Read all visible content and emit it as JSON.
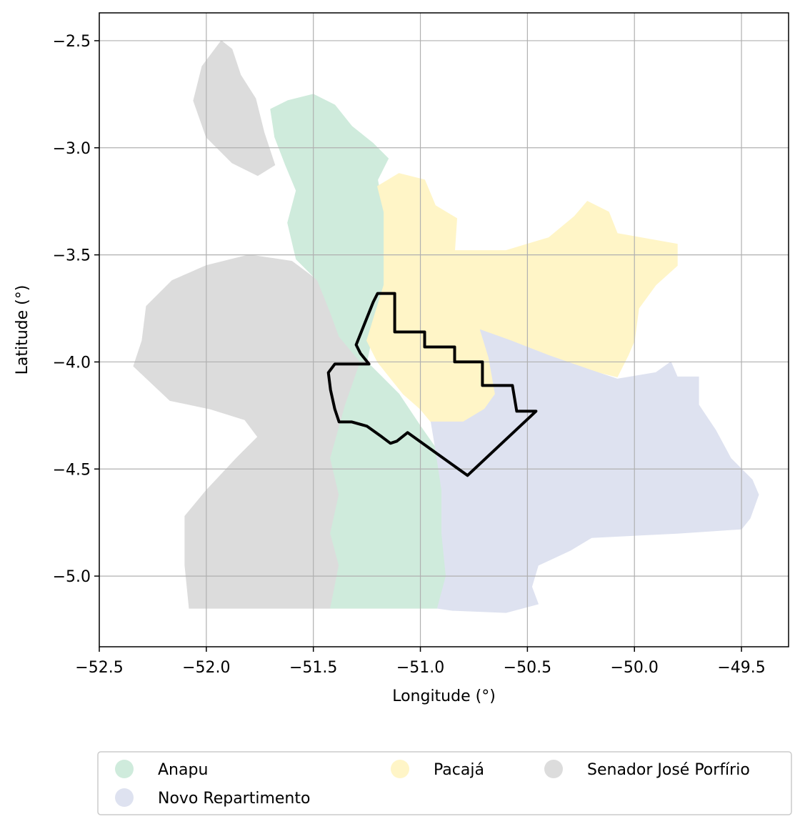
{
  "chart_data": {
    "type": "map",
    "xlabel": "Longitude (°)",
    "ylabel": "Latitude (°)",
    "xlim": [
      -52.5,
      -49.28
    ],
    "ylim": [
      -5.33,
      -2.37
    ],
    "x_ticks": [
      -52.5,
      -52.0,
      -51.5,
      -51.0,
      -50.5,
      -50.0,
      -49.5
    ],
    "x_tick_labels": [
      "−52.5",
      "−52.0",
      "−51.5",
      "−51.0",
      "−50.5",
      "−50.0",
      "−49.5"
    ],
    "y_ticks": [
      -2.5,
      -3.0,
      -3.5,
      -4.0,
      -4.5,
      -5.0
    ],
    "y_tick_labels": [
      "−2.5",
      "−3.0",
      "−3.5",
      "−4.0",
      "−4.5",
      "−5.0"
    ],
    "grid": true,
    "legend": {
      "placement": "bottom",
      "entries": [
        {
          "label": "Anapu",
          "color": "#cfebdc"
        },
        {
          "label": "Novo Repartimento",
          "color": "#dee2f0"
        },
        {
          "label": "Pacajá",
          "color": "#fff5c7"
        },
        {
          "label": "Senador José Porfírio",
          "color": "#dcdcdc"
        }
      ]
    },
    "regions": [
      {
        "name": "Senador José Porfírio",
        "color": "#dcdcdc",
        "outline": [
          [
            -51.93,
            -2.5
          ],
          [
            -51.88,
            -2.54
          ],
          [
            -51.84,
            -2.66
          ],
          [
            -51.77,
            -2.77
          ],
          [
            -51.73,
            -2.93
          ],
          [
            -51.68,
            -3.08
          ],
          [
            -51.76,
            -3.13
          ],
          [
            -51.88,
            -3.07
          ],
          [
            -52.0,
            -2.95
          ],
          [
            -52.06,
            -2.78
          ],
          [
            -52.02,
            -2.62
          ]
        ]
      },
      {
        "name": "Senador José Porfírio",
        "color": "#dcdcdc",
        "outline": [
          [
            -51.8,
            -3.5
          ],
          [
            -51.6,
            -3.53
          ],
          [
            -51.48,
            -3.62
          ],
          [
            -51.42,
            -3.77
          ],
          [
            -51.38,
            -3.88
          ],
          [
            -51.28,
            -4.0
          ],
          [
            -51.35,
            -4.2
          ],
          [
            -51.42,
            -4.45
          ],
          [
            -51.38,
            -4.62
          ],
          [
            -51.42,
            -4.8
          ],
          [
            -51.38,
            -4.95
          ],
          [
            -51.42,
            -5.15
          ],
          [
            -52.08,
            -5.15
          ],
          [
            -52.1,
            -4.95
          ],
          [
            -52.1,
            -4.72
          ],
          [
            -52.0,
            -4.6
          ],
          [
            -51.86,
            -4.45
          ],
          [
            -51.76,
            -4.35
          ],
          [
            -51.82,
            -4.27
          ],
          [
            -51.98,
            -4.22
          ],
          [
            -52.17,
            -4.18
          ],
          [
            -52.34,
            -4.02
          ],
          [
            -52.3,
            -3.9
          ],
          [
            -52.28,
            -3.74
          ],
          [
            -52.16,
            -3.62
          ],
          [
            -52.0,
            -3.55
          ]
        ]
      },
      {
        "name": "Anapu",
        "color": "#cfebdc",
        "outline": [
          [
            -51.5,
            -2.75
          ],
          [
            -51.4,
            -2.8
          ],
          [
            -51.32,
            -2.9
          ],
          [
            -51.22,
            -2.98
          ],
          [
            -51.15,
            -3.05
          ],
          [
            -51.2,
            -3.15
          ],
          [
            -51.17,
            -3.3
          ],
          [
            -51.17,
            -3.64
          ],
          [
            -51.22,
            -3.85
          ],
          [
            -51.25,
            -4.0
          ],
          [
            -51.1,
            -4.15
          ],
          [
            -51.0,
            -4.3
          ],
          [
            -50.93,
            -4.4
          ],
          [
            -50.9,
            -4.6
          ],
          [
            -50.9,
            -4.8
          ],
          [
            -50.88,
            -5.0
          ],
          [
            -50.92,
            -5.15
          ],
          [
            -51.42,
            -5.15
          ],
          [
            -51.38,
            -4.95
          ],
          [
            -51.42,
            -4.8
          ],
          [
            -51.38,
            -4.62
          ],
          [
            -51.42,
            -4.45
          ],
          [
            -51.35,
            -4.2
          ],
          [
            -51.28,
            -4.0
          ],
          [
            -51.38,
            -3.88
          ],
          [
            -51.42,
            -3.77
          ],
          [
            -51.48,
            -3.62
          ],
          [
            -51.58,
            -3.52
          ],
          [
            -51.62,
            -3.35
          ],
          [
            -51.58,
            -3.2
          ],
          [
            -51.63,
            -3.08
          ],
          [
            -51.68,
            -2.95
          ],
          [
            -51.7,
            -2.82
          ],
          [
            -51.62,
            -2.78
          ]
        ]
      },
      {
        "name": "Pacajá",
        "color": "#fff5c7",
        "outline": [
          [
            -51.1,
            -3.12
          ],
          [
            -50.98,
            -3.15
          ],
          [
            -50.93,
            -3.27
          ],
          [
            -50.83,
            -3.33
          ],
          [
            -50.84,
            -3.48
          ],
          [
            -50.6,
            -3.48
          ],
          [
            -50.4,
            -3.42
          ],
          [
            -50.28,
            -3.32
          ],
          [
            -50.22,
            -3.25
          ],
          [
            -50.12,
            -3.3
          ],
          [
            -50.08,
            -3.4
          ],
          [
            -49.8,
            -3.45
          ],
          [
            -49.8,
            -3.55
          ],
          [
            -49.9,
            -3.64
          ],
          [
            -49.98,
            -3.75
          ],
          [
            -50.0,
            -3.9
          ],
          [
            -50.03,
            -3.97
          ],
          [
            -50.08,
            -4.07
          ],
          [
            -50.2,
            -4.04
          ],
          [
            -50.4,
            -3.97
          ],
          [
            -50.58,
            -3.9
          ],
          [
            -50.72,
            -3.85
          ],
          [
            -50.68,
            -3.98
          ],
          [
            -50.65,
            -4.15
          ],
          [
            -50.7,
            -4.22
          ],
          [
            -50.8,
            -4.28
          ],
          [
            -50.95,
            -4.28
          ],
          [
            -51.0,
            -4.22
          ],
          [
            -51.08,
            -4.15
          ],
          [
            -51.2,
            -4.0
          ],
          [
            -51.25,
            -3.9
          ],
          [
            -51.17,
            -3.64
          ],
          [
            -51.17,
            -3.3
          ],
          [
            -51.2,
            -3.18
          ]
        ]
      },
      {
        "name": "Novo Repartimento",
        "color": "#dee2f0",
        "outline": [
          [
            -50.72,
            -3.85
          ],
          [
            -50.58,
            -3.9
          ],
          [
            -50.4,
            -3.97
          ],
          [
            -50.2,
            -4.04
          ],
          [
            -50.08,
            -4.08
          ],
          [
            -49.9,
            -4.05
          ],
          [
            -49.83,
            -4.0
          ],
          [
            -49.8,
            -4.07
          ],
          [
            -49.7,
            -4.07
          ],
          [
            -49.7,
            -4.2
          ],
          [
            -49.62,
            -4.32
          ],
          [
            -49.55,
            -4.45
          ],
          [
            -49.45,
            -4.55
          ],
          [
            -49.42,
            -4.62
          ],
          [
            -49.46,
            -4.73
          ],
          [
            -49.5,
            -4.78
          ],
          [
            -49.8,
            -4.8
          ],
          [
            -50.2,
            -4.82
          ],
          [
            -50.3,
            -4.88
          ],
          [
            -50.45,
            -4.95
          ],
          [
            -50.48,
            -5.05
          ],
          [
            -50.45,
            -5.13
          ],
          [
            -50.6,
            -5.17
          ],
          [
            -50.85,
            -5.16
          ],
          [
            -50.92,
            -5.15
          ],
          [
            -50.88,
            -5.0
          ],
          [
            -50.9,
            -4.8
          ],
          [
            -50.9,
            -4.6
          ],
          [
            -50.93,
            -4.4
          ],
          [
            -50.95,
            -4.28
          ],
          [
            -50.8,
            -4.28
          ],
          [
            -50.7,
            -4.22
          ],
          [
            -50.65,
            -4.15
          ],
          [
            -50.68,
            -3.98
          ]
        ]
      }
    ],
    "highlight_outline": [
      [
        -51.2,
        -3.68
      ],
      [
        -51.12,
        -3.68
      ],
      [
        -51.12,
        -3.86
      ],
      [
        -50.98,
        -3.86
      ],
      [
        -50.98,
        -3.93
      ],
      [
        -50.84,
        -3.93
      ],
      [
        -50.84,
        -4.0
      ],
      [
        -50.71,
        -4.0
      ],
      [
        -50.71,
        -4.11
      ],
      [
        -50.57,
        -4.11
      ],
      [
        -50.55,
        -4.23
      ],
      [
        -50.46,
        -4.23
      ],
      [
        -50.78,
        -4.53
      ],
      [
        -51.06,
        -4.33
      ],
      [
        -51.11,
        -4.37
      ],
      [
        -51.14,
        -4.38
      ],
      [
        -51.18,
        -4.35
      ],
      [
        -51.25,
        -4.3
      ],
      [
        -51.32,
        -4.28
      ],
      [
        -51.38,
        -4.28
      ],
      [
        -51.4,
        -4.22
      ],
      [
        -51.42,
        -4.13
      ],
      [
        -51.43,
        -4.05
      ],
      [
        -51.4,
        -4.01
      ],
      [
        -51.24,
        -4.01
      ],
      [
        -51.28,
        -3.96
      ],
      [
        -51.3,
        -3.92
      ],
      [
        -51.26,
        -3.82
      ],
      [
        -51.22,
        -3.72
      ]
    ]
  }
}
